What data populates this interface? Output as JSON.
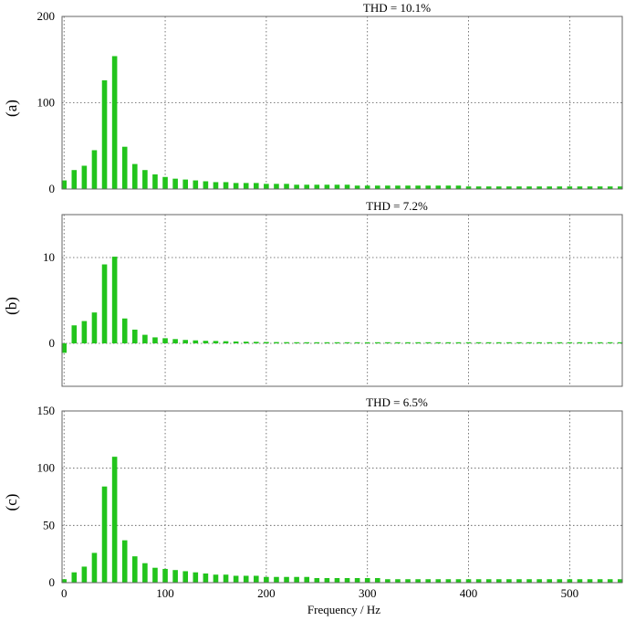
{
  "figure": {
    "xlabel": "Frequency / Hz"
  },
  "colors": {
    "bar": "#22c41c",
    "grid": "#555555",
    "frame": "#666666"
  },
  "chart_data": [
    {
      "type": "bar",
      "panel_label": "(a)",
      "title": "THD = 10.1%",
      "xlabel": "",
      "ylabel": "",
      "xlim": [
        -2,
        552
      ],
      "ylim": [
        0,
        200
      ],
      "xticks": [
        0,
        100,
        200,
        300,
        400,
        500
      ],
      "yticks": [
        0,
        100,
        200
      ],
      "grid": true,
      "series": [
        {
          "x": [
            0,
            10,
            20,
            30,
            40,
            50,
            60,
            70,
            80,
            90,
            100,
            110,
            120,
            130,
            140,
            150,
            160,
            170,
            180,
            190,
            200,
            210,
            220,
            230,
            240,
            250,
            260,
            270,
            280,
            290,
            300,
            310,
            320,
            330,
            340,
            350,
            360,
            370,
            380,
            390,
            400,
            410,
            420,
            430,
            440,
            450,
            460,
            470,
            480,
            490,
            500,
            510,
            520,
            530,
            540,
            550
          ],
          "values": [
            10,
            22,
            27,
            45,
            126,
            154,
            49,
            29,
            22,
            17,
            14,
            12,
            11,
            10,
            9,
            8,
            8,
            7,
            7,
            7,
            6,
            6,
            6,
            5,
            5,
            5,
            5,
            5,
            5,
            4,
            4,
            4,
            4,
            4,
            4,
            4,
            4,
            4,
            4,
            4,
            3,
            3,
            3,
            3,
            3,
            3,
            3,
            3,
            3,
            3,
            3,
            3,
            3,
            3,
            3,
            3
          ]
        }
      ]
    },
    {
      "type": "bar",
      "panel_label": "(b)",
      "title": "THD = 7.2%",
      "xlabel": "",
      "ylabel": "",
      "xlim": [
        -2,
        552
      ],
      "ylim": [
        -5,
        15
      ],
      "xticks": [
        0,
        100,
        200,
        300,
        400,
        500
      ],
      "yticks": [
        0,
        10
      ],
      "grid": true,
      "series": [
        {
          "x": [
            0,
            10,
            20,
            30,
            40,
            50,
            60,
            70,
            80,
            90,
            100,
            110,
            120,
            130,
            140,
            150,
            160,
            170,
            180,
            190,
            200,
            210,
            220,
            230,
            240,
            250,
            260,
            270,
            280,
            290,
            300,
            310,
            320,
            330,
            340,
            350,
            360,
            370,
            380,
            390,
            400,
            410,
            420,
            430,
            440,
            450,
            460,
            470,
            480,
            490,
            500,
            510,
            520,
            530,
            540,
            550
          ],
          "values": [
            -1.1,
            2.1,
            2.6,
            3.6,
            9.2,
            10.1,
            2.9,
            1.6,
            1.0,
            0.7,
            0.6,
            0.5,
            0.4,
            0.35,
            0.3,
            0.28,
            0.25,
            0.22,
            0.2,
            0.18,
            0.16,
            0.15,
            0.14,
            0.13,
            0.12,
            0.11,
            0.1,
            0.1,
            0.09,
            0.09,
            0.08,
            0.08,
            0.07,
            0.07,
            0.07,
            0.06,
            0.06,
            0.06,
            0.05,
            0.05,
            0.05,
            0.05,
            0.05,
            0.04,
            0.04,
            0.04,
            0.04,
            0.04,
            0.04,
            0.03,
            0.03,
            0.03,
            0.03,
            0.03,
            0.03,
            0.03
          ]
        }
      ]
    },
    {
      "type": "bar",
      "panel_label": "(c)",
      "title": "THD = 6.5%",
      "xlabel": "Frequency / Hz",
      "ylabel": "",
      "xlim": [
        -2,
        552
      ],
      "ylim": [
        0,
        150
      ],
      "xticks": [
        0,
        100,
        200,
        300,
        400,
        500
      ],
      "yticks": [
        0,
        50,
        100,
        150
      ],
      "grid": true,
      "series": [
        {
          "x": [
            0,
            10,
            20,
            30,
            40,
            50,
            60,
            70,
            80,
            90,
            100,
            110,
            120,
            130,
            140,
            150,
            160,
            170,
            180,
            190,
            200,
            210,
            220,
            230,
            240,
            250,
            260,
            270,
            280,
            290,
            300,
            310,
            320,
            330,
            340,
            350,
            360,
            370,
            380,
            390,
            400,
            410,
            420,
            430,
            440,
            450,
            460,
            470,
            480,
            490,
            500,
            510,
            520,
            530,
            540,
            550
          ],
          "values": [
            3,
            9,
            14,
            26,
            84,
            110,
            37,
            23,
            17,
            13,
            12,
            11,
            10,
            9,
            8,
            7,
            7,
            6,
            6,
            6,
            5,
            5,
            5,
            5,
            5,
            4,
            4,
            4,
            4,
            4,
            4,
            4,
            3,
            3,
            3,
            3,
            3,
            3,
            3,
            3,
            3,
            3,
            3,
            3,
            3,
            3,
            3,
            3,
            3,
            3,
            3,
            3,
            3,
            3,
            3,
            3
          ]
        }
      ]
    }
  ]
}
